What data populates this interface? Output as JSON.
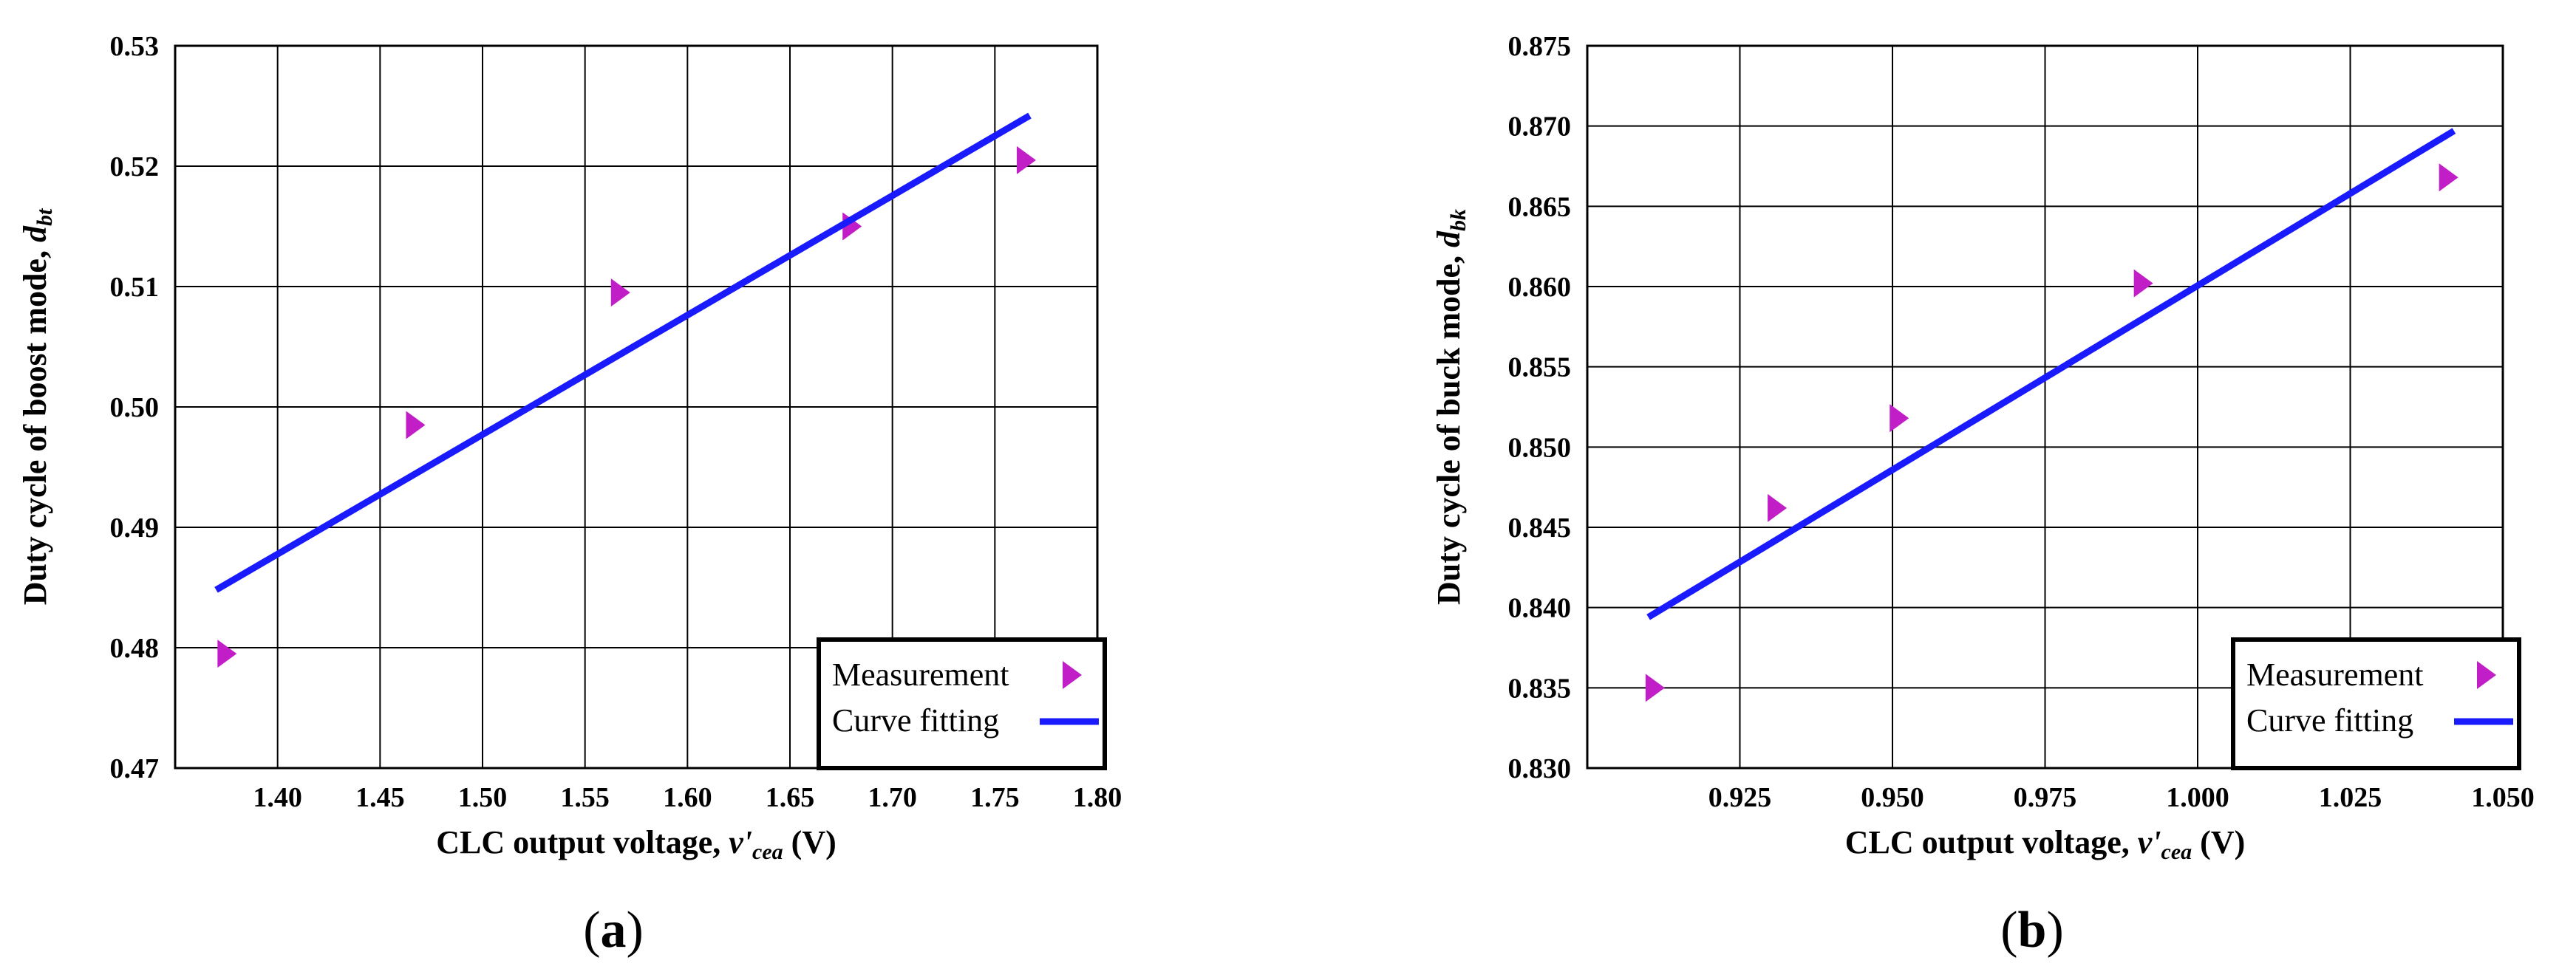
{
  "chart_data": [
    {
      "type": "line",
      "panel_label": "a",
      "xlabel_prefix": "CLC  output voltage, ",
      "xlabel_var": "v'",
      "xlabel_sub": "cea",
      "xlabel_unit": " (V)",
      "ylabel_prefix": "Duty cycle of boost mode, ",
      "ylabel_var": "d",
      "ylabel_sub": "bt",
      "xlim": [
        1.35,
        1.8
      ],
      "ylim": [
        0.47,
        0.53
      ],
      "xticks": [
        "1.40",
        "1.45",
        "1.50",
        "1.55",
        "1.60",
        "1.65",
        "1.70",
        "1.75",
        "1.80"
      ],
      "yticks": [
        "0.47",
        "0.48",
        "0.49",
        "0.50",
        "0.51",
        "0.52",
        "0.53"
      ],
      "series": [
        {
          "name": "Measurement",
          "kind": "marker",
          "x": [
            1.375,
            1.467,
            1.567,
            1.68,
            1.765
          ],
          "y": [
            0.4795,
            0.4985,
            0.5095,
            0.515,
            0.5205
          ]
        },
        {
          "name": "Curve fitting",
          "kind": "line",
          "x": [
            1.37,
            1.767
          ],
          "y": [
            0.4848,
            0.5242
          ]
        }
      ],
      "legend": {
        "position": "bottom-right",
        "entries": [
          "Measurement",
          "Curve fitting"
        ]
      }
    },
    {
      "type": "line",
      "panel_label": "b",
      "xlabel_prefix": "CLC  output voltage, ",
      "xlabel_var": "v'",
      "xlabel_sub": "cea",
      "xlabel_unit": " (V)",
      "ylabel_prefix": "Duty cycle of buck mode, ",
      "ylabel_var": "d",
      "ylabel_sub": "bk",
      "xlim": [
        0.9,
        1.05
      ],
      "ylim": [
        0.83,
        0.875
      ],
      "xticks": [
        "0.925",
        "0.950",
        "0.975",
        "1.000",
        "1.025",
        "1.050"
      ],
      "yticks": [
        "0.830",
        "0.835",
        "0.840",
        "0.845",
        "0.850",
        "0.855",
        "0.860",
        "0.865",
        "0.870",
        "0.875"
      ],
      "series": [
        {
          "name": "Measurement",
          "kind": "marker",
          "x": [
            0.911,
            0.931,
            0.951,
            0.991,
            1.041
          ],
          "y": [
            0.835,
            0.8462,
            0.8518,
            0.8602,
            0.8668
          ]
        },
        {
          "name": "Curve fitting",
          "kind": "line",
          "x": [
            0.91,
            1.042
          ],
          "y": [
            0.8394,
            0.8697
          ]
        }
      ],
      "legend": {
        "position": "bottom-right",
        "entries": [
          "Measurement",
          "Curve fitting"
        ]
      }
    }
  ]
}
